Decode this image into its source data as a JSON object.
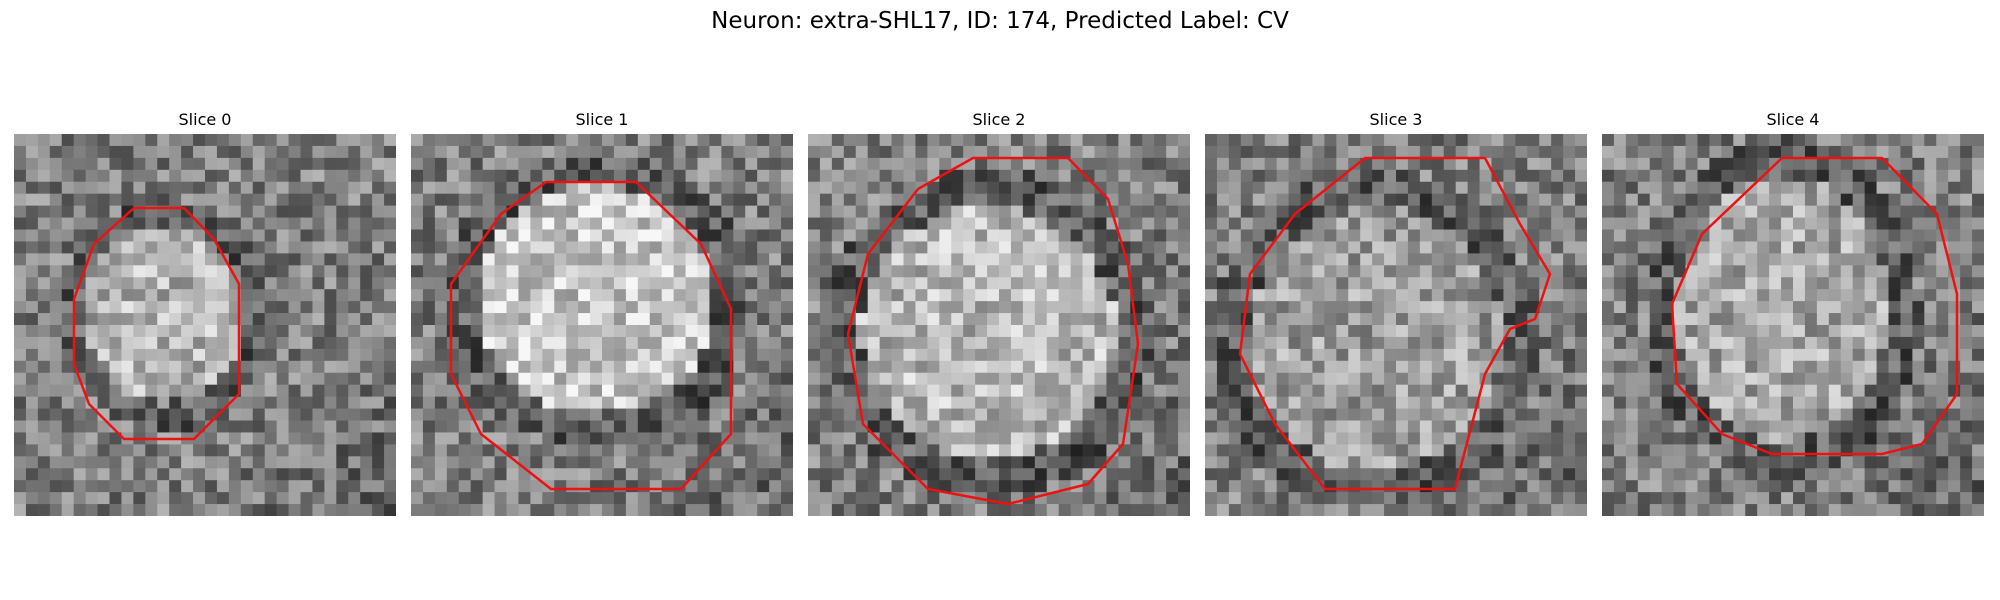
{
  "figure": {
    "title": "Neuron: extra-SHL17, ID: 174, Predicted Label: CV"
  },
  "contour_color": "#ee1111",
  "panels": [
    {
      "label": "Slice 0"
    },
    {
      "label": "Slice 1"
    },
    {
      "label": "Slice 2"
    },
    {
      "label": "Slice 3"
    },
    {
      "label": "Slice 4"
    }
  ]
}
